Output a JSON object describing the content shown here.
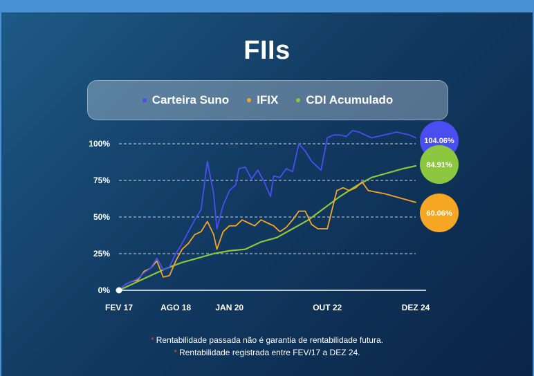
{
  "title": "FIIs",
  "chart_data": {
    "type": "line",
    "x_ticks": [
      "FEV 17",
      "AGO 18",
      "JAN 20",
      "OUT 22",
      "DEZ 24"
    ],
    "x_tick_positions": [
      0,
      18,
      35,
      66,
      94
    ],
    "y_ticks": [
      "0%",
      "25%",
      "50%",
      "75%",
      "100%"
    ],
    "ylim": [
      0,
      100
    ],
    "xlim": [
      0,
      94
    ],
    "x_unit": "months since FEV 17",
    "series": [
      {
        "name": "Carteira Suno",
        "color": "#4a4ef0",
        "points": [
          [
            0,
            0
          ],
          [
            2,
            4
          ],
          [
            4,
            6
          ],
          [
            6,
            8
          ],
          [
            8,
            12
          ],
          [
            10,
            15
          ],
          [
            12,
            22
          ],
          [
            14,
            14
          ],
          [
            16,
            16
          ],
          [
            18,
            25
          ],
          [
            20,
            32
          ],
          [
            22,
            40
          ],
          [
            24,
            48
          ],
          [
            26,
            55
          ],
          [
            28,
            88
          ],
          [
            30,
            66
          ],
          [
            31,
            42
          ],
          [
            33,
            58
          ],
          [
            35,
            68
          ],
          [
            37,
            72
          ],
          [
            38,
            83
          ],
          [
            40,
            84
          ],
          [
            42,
            76
          ],
          [
            44,
            82
          ],
          [
            46,
            74
          ],
          [
            48,
            64
          ],
          [
            49,
            78
          ],
          [
            51,
            77
          ],
          [
            53,
            83
          ],
          [
            55,
            81
          ],
          [
            57,
            100
          ],
          [
            59,
            95
          ],
          [
            61,
            88
          ],
          [
            64,
            82
          ],
          [
            66,
            104
          ],
          [
            68,
            106
          ],
          [
            70,
            106
          ],
          [
            72,
            105
          ],
          [
            74,
            109
          ],
          [
            76,
            108
          ],
          [
            78,
            106
          ],
          [
            80,
            104
          ],
          [
            84,
            106
          ],
          [
            88,
            108
          ],
          [
            92,
            106
          ],
          [
            94,
            104.06
          ]
        ]
      },
      {
        "name": "IFIX",
        "color": "#f5a623",
        "points": [
          [
            0,
            0
          ],
          [
            2,
            4
          ],
          [
            4,
            6
          ],
          [
            6,
            7
          ],
          [
            8,
            13
          ],
          [
            10,
            15
          ],
          [
            12,
            20
          ],
          [
            14,
            9
          ],
          [
            16,
            10
          ],
          [
            18,
            20
          ],
          [
            20,
            28
          ],
          [
            22,
            32
          ],
          [
            24,
            38
          ],
          [
            26,
            40
          ],
          [
            28,
            47
          ],
          [
            30,
            38
          ],
          [
            31,
            28
          ],
          [
            33,
            40
          ],
          [
            35,
            44
          ],
          [
            37,
            44
          ],
          [
            39,
            48
          ],
          [
            41,
            46
          ],
          [
            43,
            44
          ],
          [
            45,
            48
          ],
          [
            47,
            46
          ],
          [
            49,
            44
          ],
          [
            51,
            40
          ],
          [
            53,
            43
          ],
          [
            55,
            48
          ],
          [
            57,
            54
          ],
          [
            59,
            54
          ],
          [
            61,
            45
          ],
          [
            63,
            42
          ],
          [
            66,
            42
          ],
          [
            69,
            68
          ],
          [
            71,
            70
          ],
          [
            73,
            68
          ],
          [
            75,
            70
          ],
          [
            77,
            74
          ],
          [
            79,
            68
          ],
          [
            84,
            66
          ],
          [
            89,
            63
          ],
          [
            94,
            60.06
          ]
        ]
      },
      {
        "name": "CDI Acumulado",
        "color": "#8dc63f",
        "points": [
          [
            0,
            0
          ],
          [
            5,
            5
          ],
          [
            10,
            10
          ],
          [
            15,
            15
          ],
          [
            20,
            19
          ],
          [
            25,
            22
          ],
          [
            30,
            25
          ],
          [
            35,
            27
          ],
          [
            40,
            28
          ],
          [
            45,
            33
          ],
          [
            50,
            36
          ],
          [
            55,
            42
          ],
          [
            60,
            48
          ],
          [
            65,
            56
          ],
          [
            70,
            64
          ],
          [
            75,
            71
          ],
          [
            80,
            77
          ],
          [
            85,
            80
          ],
          [
            90,
            83
          ],
          [
            94,
            84.91
          ]
        ]
      }
    ],
    "end_labels": [
      {
        "series": "Carteira Suno",
        "text": "104.06%"
      },
      {
        "series": "CDI Acumulado",
        "text": "84.91%"
      },
      {
        "series": "IFIX",
        "text": "60.06%"
      }
    ]
  },
  "notes": [
    "Rentabilidade passada não é garantia de rentabilidade futura.",
    "Rentabilidade registrada entre FEV/17 a DEZ 24."
  ],
  "note_marker": "*"
}
